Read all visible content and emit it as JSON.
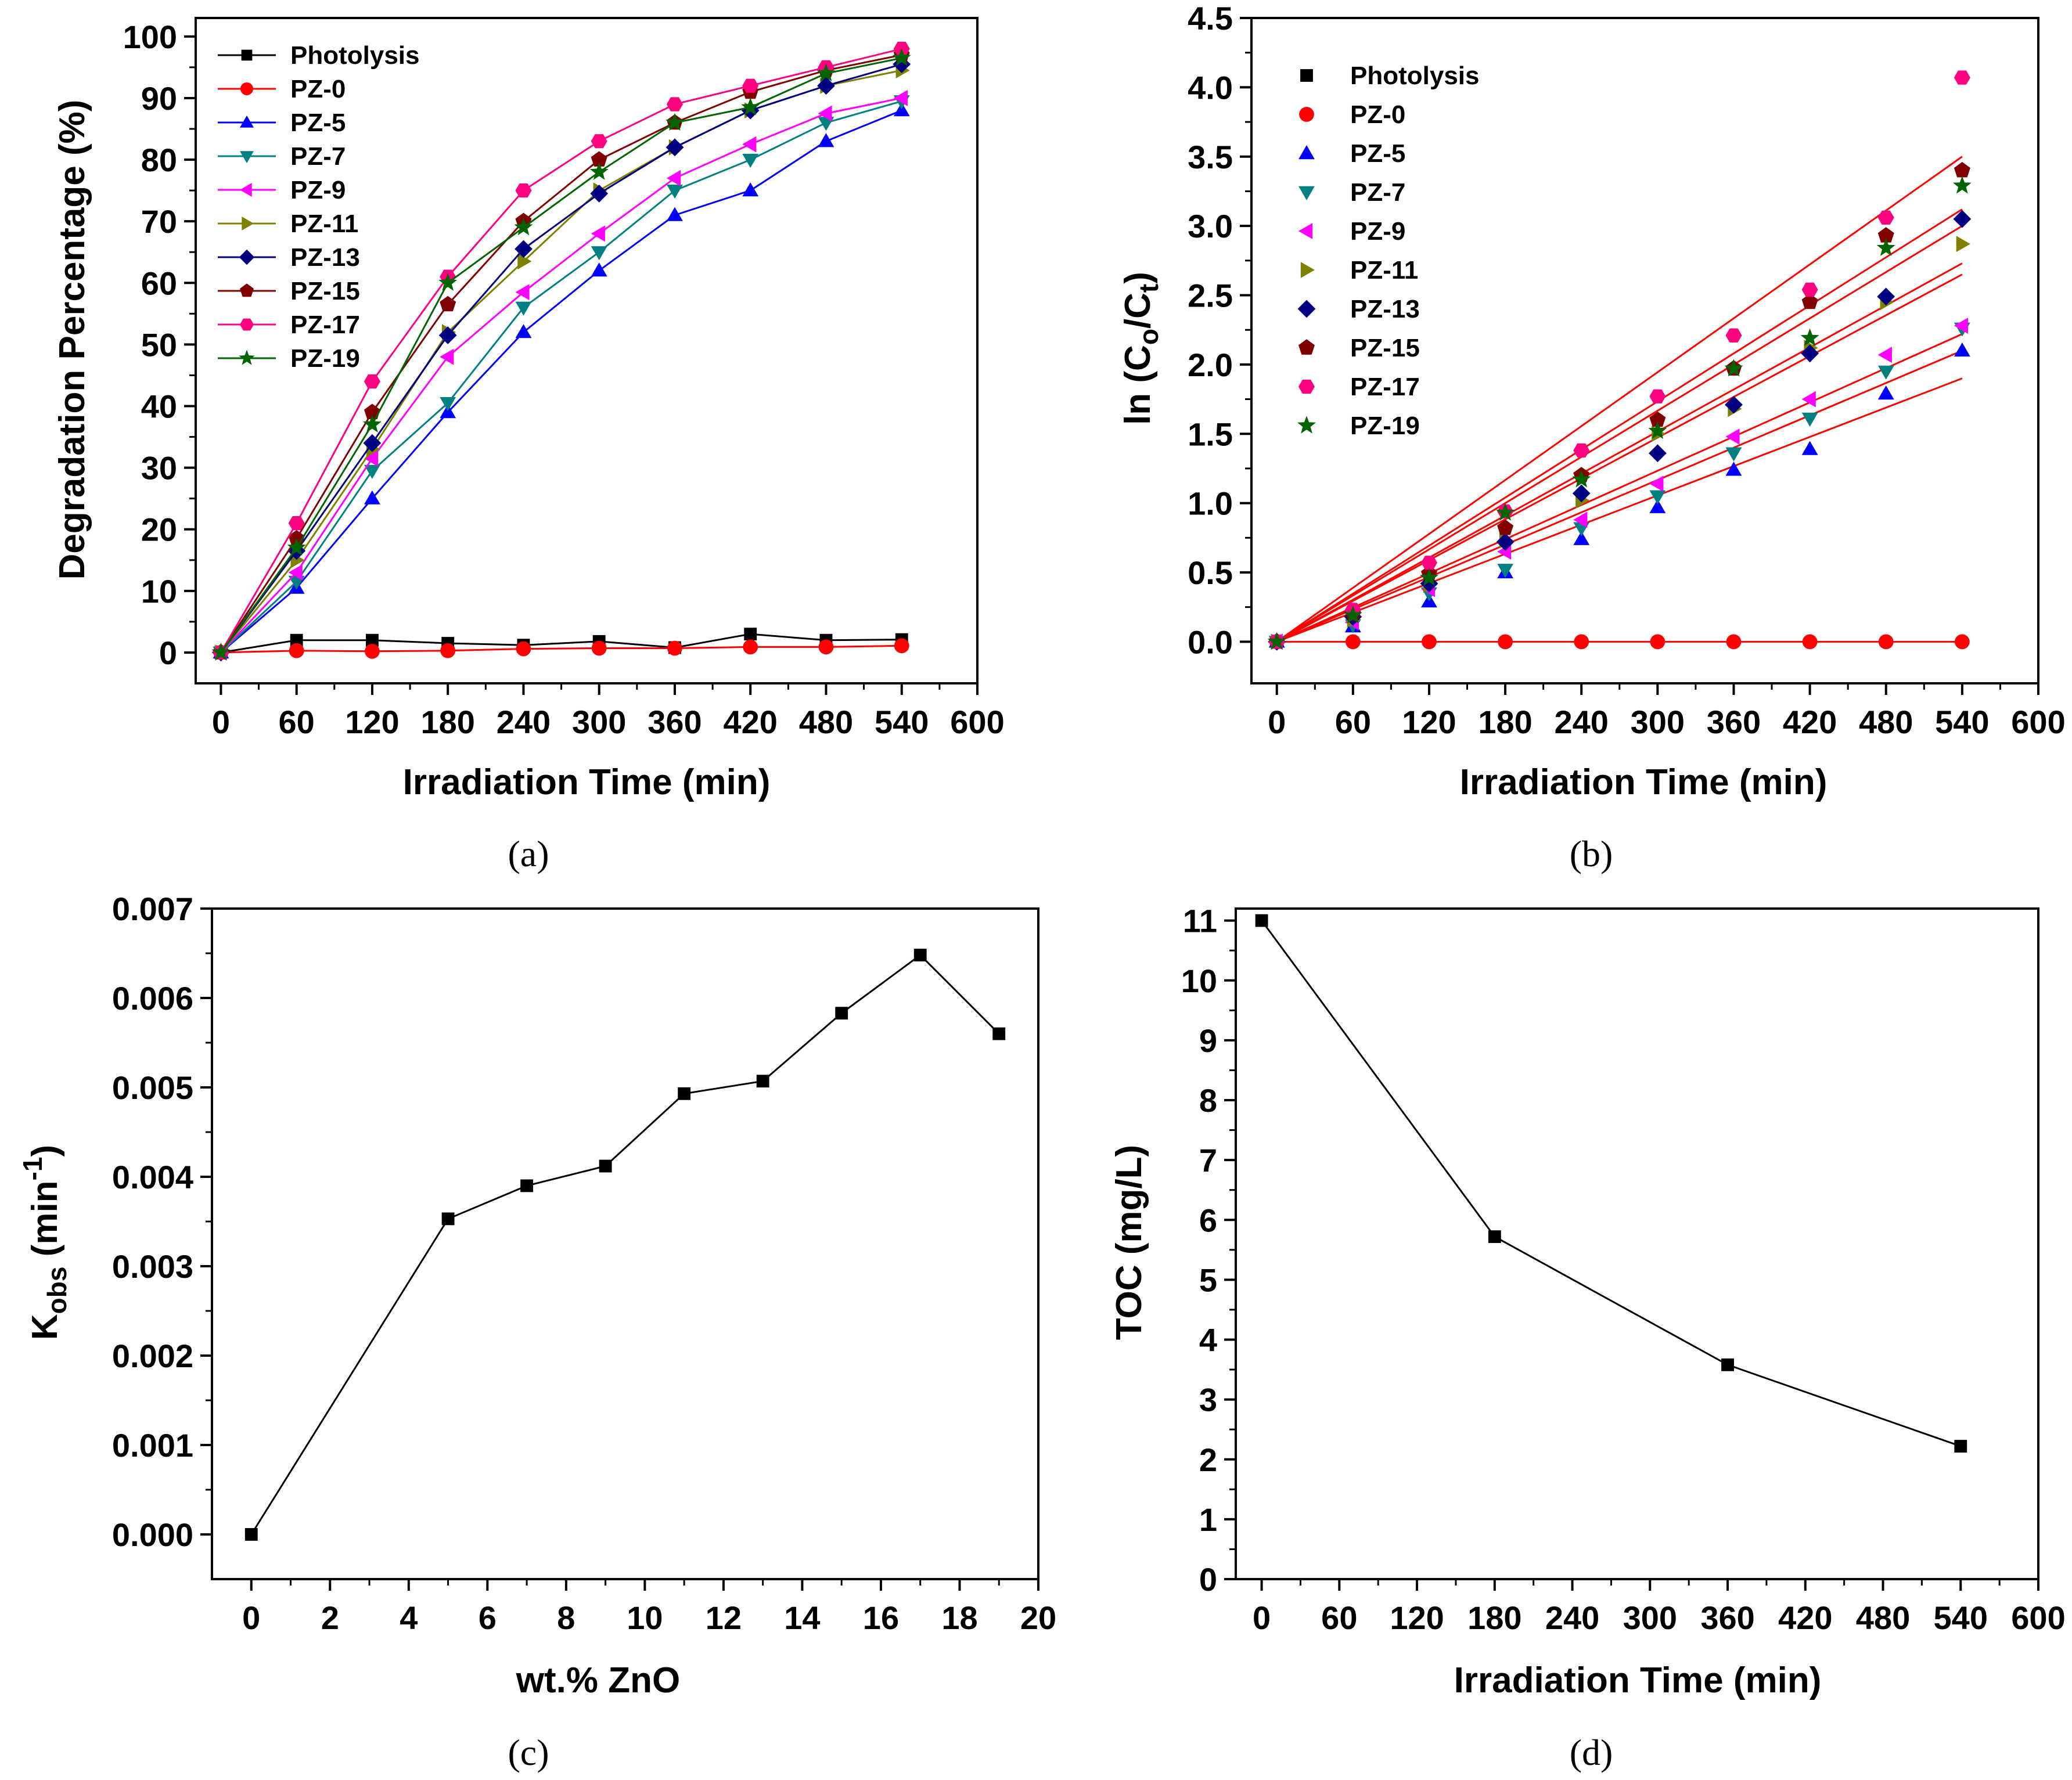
{
  "colors": {
    "Photolysis": "#000000",
    "PZ-0": "#ff0000",
    "PZ-5": "#0000ff",
    "PZ-7": "#008080",
    "PZ-9": "#ff00ff",
    "PZ-11": "#808000",
    "PZ-13": "#000080",
    "PZ-15": "#800000",
    "PZ-17": "#ff0080",
    "PZ-19": "#006400",
    "fit": "#ff0000"
  },
  "chart_data": [
    {
      "id": "a",
      "caption": "(a)",
      "type": "line",
      "title": "",
      "xlabel": "Irradiation Time (min)",
      "ylabel": "Degradation Percentage (%)",
      "xlim": [
        -20,
        600
      ],
      "ylim": [
        -5,
        103
      ],
      "xticks": [
        0,
        60,
        120,
        180,
        240,
        300,
        360,
        420,
        480,
        540,
        600
      ],
      "yticks": [
        0,
        10,
        20,
        30,
        40,
        50,
        60,
        70,
        80,
        90,
        100
      ],
      "x": [
        0,
        60,
        120,
        180,
        240,
        300,
        360,
        420,
        480,
        540
      ],
      "legend_position": "top-left",
      "series": [
        {
          "name": "Photolysis",
          "marker": "square",
          "values": [
            0,
            2,
            2,
            1.5,
            1.2,
            1.8,
            0.8,
            3,
            2,
            2.1
          ]
        },
        {
          "name": "PZ-0",
          "marker": "circle",
          "values": [
            0,
            0.3,
            0.2,
            0.3,
            0.6,
            0.7,
            0.7,
            0.9,
            0.9,
            1.1
          ]
        },
        {
          "name": "PZ-5",
          "marker": "triangle-up",
          "values": [
            0,
            10.5,
            25,
            39,
            52,
            62,
            71,
            75,
            83,
            88
          ]
        },
        {
          "name": "PZ-7",
          "marker": "triangle-down",
          "values": [
            0,
            11.5,
            29.5,
            40.5,
            56,
            65,
            75,
            80,
            86,
            89.5
          ]
        },
        {
          "name": "PZ-9",
          "marker": "triangle-left",
          "values": [
            0,
            13,
            31.5,
            48,
            58.5,
            68,
            77,
            82.5,
            87.5,
            90
          ]
        },
        {
          "name": "PZ-11",
          "marker": "triangle-right",
          "values": [
            0,
            15,
            33,
            52,
            63.5,
            75,
            82,
            88,
            92,
            94.5
          ]
        },
        {
          "name": "PZ-13",
          "marker": "diamond",
          "values": [
            0,
            16.5,
            34,
            51.5,
            65.5,
            74.5,
            82,
            88,
            92,
            95.5
          ]
        },
        {
          "name": "PZ-15",
          "marker": "pentagon",
          "values": [
            0,
            18.5,
            39,
            56.5,
            70,
            80,
            86,
            91,
            94.5,
            97
          ]
        },
        {
          "name": "PZ-17",
          "marker": "hexagon",
          "values": [
            0,
            21,
            44,
            61,
            75,
            83,
            89,
            92,
            95,
            98
          ]
        },
        {
          "name": "PZ-19",
          "marker": "star",
          "values": [
            0,
            17,
            37,
            60,
            69,
            78,
            86,
            88.5,
            94,
            96.5
          ]
        }
      ]
    },
    {
      "id": "b",
      "caption": "(b)",
      "type": "scatter",
      "title": "",
      "xlabel": "Irradiation Time (min)",
      "ylabel_main": "ln (C",
      "ylabel_sub1": "o",
      "ylabel_mid": "/C",
      "ylabel_sub2": "t",
      "ylabel_end": ")",
      "xlim": [
        -20,
        600
      ],
      "ylim": [
        -0.3,
        4.5
      ],
      "xticks": [
        0,
        60,
        120,
        180,
        240,
        300,
        360,
        420,
        480,
        540,
        600
      ],
      "yticks": [
        0.0,
        0.5,
        1.0,
        1.5,
        2.0,
        2.5,
        3.0,
        3.5,
        4.0,
        4.5
      ],
      "ytick_labels": [
        "0.0",
        "0.5",
        "1.0",
        "1.5",
        "2.0",
        "2.5",
        "3.0",
        "3.5",
        "4.0",
        "4.5"
      ],
      "x": [
        0,
        60,
        120,
        180,
        240,
        300,
        360,
        420,
        480,
        540
      ],
      "legend_position": "top-left",
      "linear_fits": [
        {
          "series": "PZ-5",
          "end_y": 1.9
        },
        {
          "series": "PZ-7",
          "end_y": 2.1
        },
        {
          "series": "PZ-9",
          "end_y": 2.22
        },
        {
          "series": "PZ-11",
          "end_y": 2.65
        },
        {
          "series": "PZ-13",
          "end_y": 2.73
        },
        {
          "series": "PZ-19",
          "end_y": 3.0
        },
        {
          "series": "PZ-15",
          "end_y": 3.12
        },
        {
          "series": "PZ-17",
          "end_y": 3.5
        },
        {
          "series": "PZ-0",
          "end_y": 0.0
        }
      ],
      "series": [
        {
          "name": "Photolysis",
          "marker": "square",
          "values": null
        },
        {
          "name": "PZ-0",
          "marker": "circle",
          "values": [
            0,
            0,
            0,
            0,
            0,
            0,
            0,
            0,
            0,
            0
          ]
        },
        {
          "name": "PZ-5",
          "marker": "triangle-up",
          "values": [
            0,
            0.11,
            0.29,
            0.5,
            0.74,
            0.97,
            1.24,
            1.39,
            1.79,
            2.1
          ]
        },
        {
          "name": "PZ-7",
          "marker": "triangle-down",
          "values": [
            0,
            0.12,
            0.35,
            0.52,
            0.82,
            1.05,
            1.36,
            1.61,
            1.95,
            2.26
          ]
        },
        {
          "name": "PZ-9",
          "marker": "triangle-left",
          "values": [
            0,
            0.14,
            0.38,
            0.65,
            0.88,
            1.14,
            1.48,
            1.75,
            2.07,
            2.28
          ]
        },
        {
          "name": "PZ-11",
          "marker": "triangle-right",
          "values": [
            0,
            0.16,
            0.41,
            0.73,
            1.02,
            1.5,
            1.68,
            2.12,
            2.45,
            2.87
          ]
        },
        {
          "name": "PZ-13",
          "marker": "diamond",
          "values": [
            0,
            0.18,
            0.42,
            0.72,
            1.07,
            1.36,
            1.71,
            2.08,
            2.49,
            3.05
          ]
        },
        {
          "name": "PZ-15",
          "marker": "pentagon",
          "values": [
            0,
            0.2,
            0.49,
            0.82,
            1.2,
            1.6,
            1.97,
            2.45,
            2.93,
            3.4
          ]
        },
        {
          "name": "PZ-17",
          "marker": "hexagon",
          "values": [
            0,
            0.23,
            0.57,
            0.94,
            1.38,
            1.77,
            2.21,
            2.54,
            3.06,
            4.07
          ]
        },
        {
          "name": "PZ-19",
          "marker": "star",
          "values": [
            0,
            0.19,
            0.46,
            0.93,
            1.17,
            1.52,
            1.97,
            2.19,
            2.84,
            3.29
          ]
        }
      ]
    },
    {
      "id": "c",
      "caption": "(c)",
      "type": "line",
      "title": "",
      "xlabel": "wt.% ZnO",
      "ylabel_main": "K",
      "ylabel_sub": "obs",
      "ylabel_unit": " (min",
      "ylabel_sup": "-1",
      "ylabel_end": ")",
      "xlim": [
        -1,
        20
      ],
      "ylim": [
        -0.0005,
        0.007
      ],
      "xticks": [
        0,
        2,
        4,
        6,
        8,
        10,
        12,
        14,
        16,
        18,
        20
      ],
      "yticks": [
        0,
        0.001,
        0.002,
        0.003,
        0.004,
        0.005,
        0.006,
        0.007
      ],
      "ytick_labels": [
        "0.000",
        "0.001",
        "0.002",
        "0.003",
        "0.004",
        "0.005",
        "0.006",
        "0.007"
      ],
      "x": [
        0,
        5,
        7,
        9,
        11,
        13,
        15,
        17,
        19
      ],
      "series": [
        {
          "name": "Kobs",
          "marker": "square",
          "values": [
            0.0,
            0.00353,
            0.0039,
            0.00412,
            0.00493,
            0.00507,
            0.00583,
            0.00648,
            0.0056
          ]
        }
      ]
    },
    {
      "id": "d",
      "caption": "(d)",
      "type": "line",
      "title": "",
      "xlabel": "Irradiation Time (min)",
      "ylabel": "TOC (mg/L)",
      "xlim": [
        -20,
        600
      ],
      "ylim": [
        0,
        11.2
      ],
      "xticks": [
        0,
        60,
        120,
        180,
        240,
        300,
        360,
        420,
        480,
        540,
        600
      ],
      "yticks": [
        0,
        1,
        2,
        3,
        4,
        5,
        6,
        7,
        8,
        9,
        10,
        11
      ],
      "x": [
        0,
        180,
        360,
        540
      ],
      "series": [
        {
          "name": "TOC",
          "marker": "square",
          "values": [
            11.0,
            5.72,
            3.58,
            2.22
          ]
        }
      ]
    }
  ]
}
